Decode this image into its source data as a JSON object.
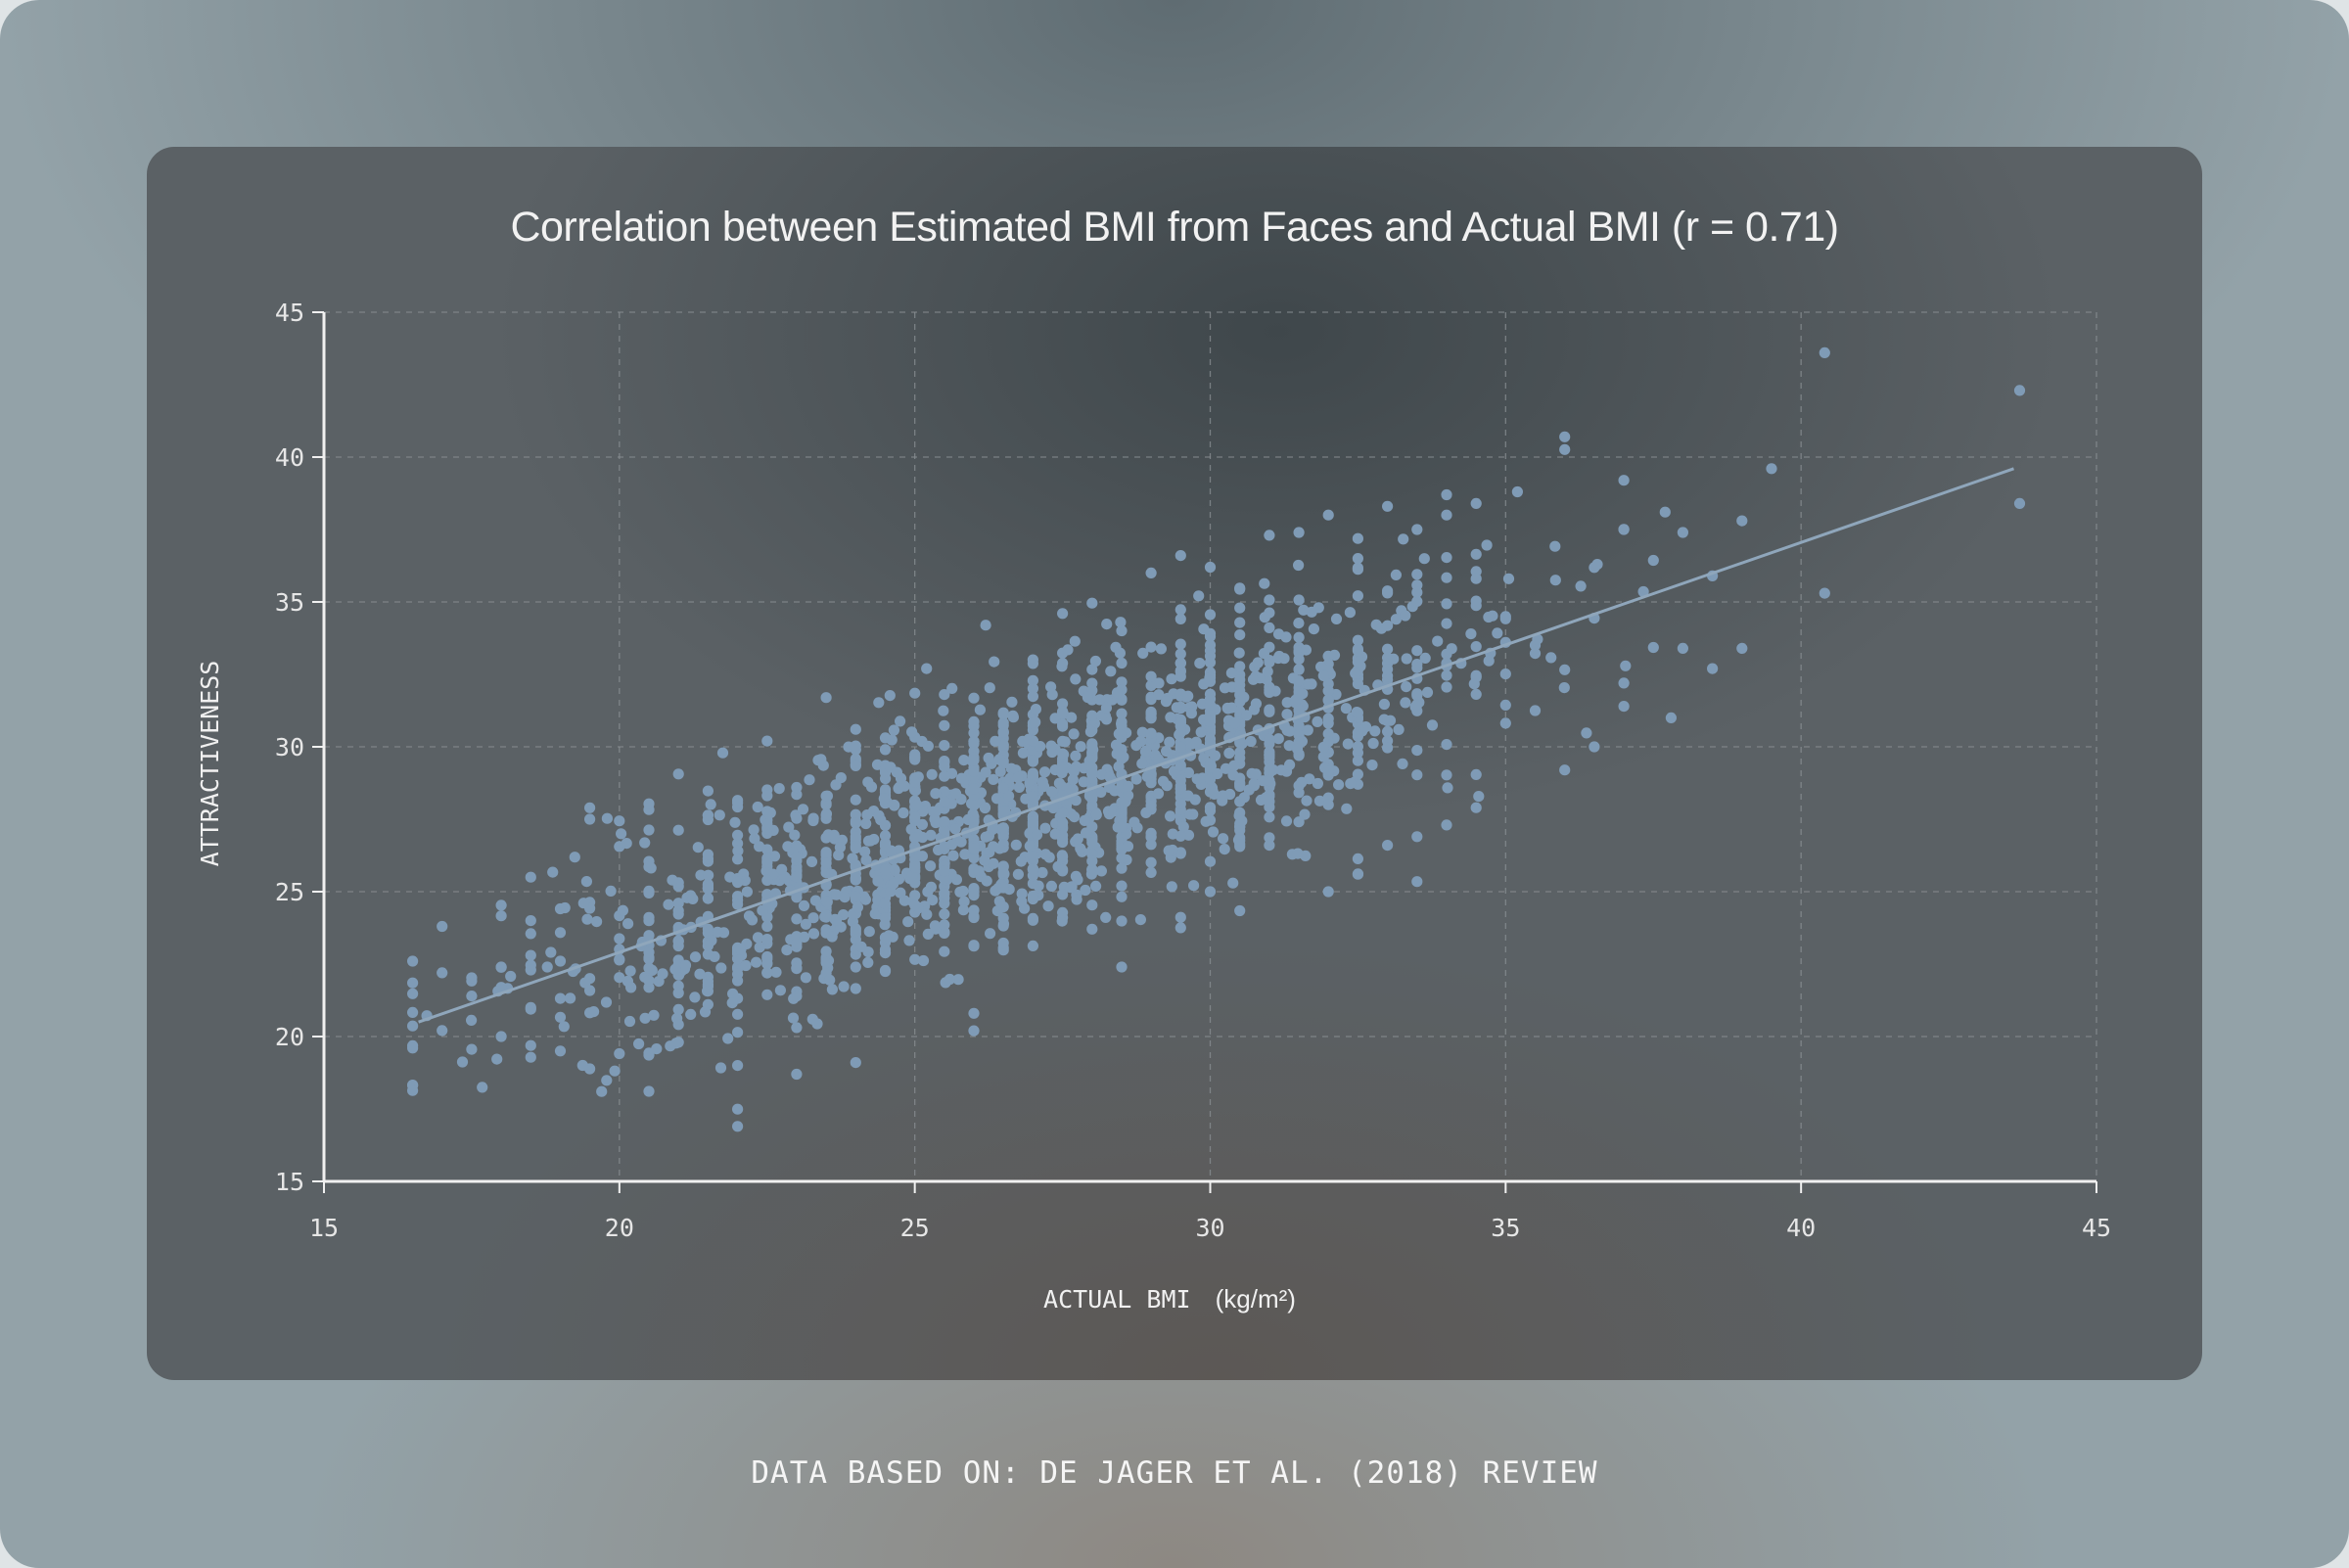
{
  "footer": "DATA BASED ON: DE JAGER ET AL. (2018) REVIEW",
  "colors": {
    "points": "#7f9bb6",
    "trend_line": "#8fa6bb",
    "axis": "#f0f0f0",
    "grid": "#8a9094"
  },
  "chart_data": {
    "type": "scatter",
    "title": "Correlation between Estimated BMI from Faces and Actual BMI (r = 0.71)",
    "xlabel": "ACTUAL BMI",
    "xlabel_unit": "(kg/m²)",
    "ylabel": "ATTRACTIVENESS",
    "xlim": [
      15,
      45
    ],
    "ylim": [
      15,
      45
    ],
    "xticks": [
      "15",
      "20",
      "25",
      "30",
      "35",
      "40",
      "45"
    ],
    "yticks": [
      "15",
      "20",
      "25",
      "30",
      "35",
      "40",
      "45"
    ],
    "grid": true,
    "correlation_r": 0.71,
    "trend_line": {
      "x": [
        16.6,
        43.6
      ],
      "y": [
        20.5,
        39.6
      ]
    },
    "generated_points": {
      "count": 1900,
      "x_mean": 27.0,
      "x_sd": 3.9,
      "x_min": 16.5,
      "x_max": 37.5,
      "slope": 0.707,
      "intercept": 8.8,
      "residual_sd": 2.15
    },
    "points": [
      [
        16.5,
        22.6
      ],
      [
        16.5,
        19.6
      ],
      [
        17.0,
        23.8
      ],
      [
        17.0,
        22.2
      ],
      [
        18.0,
        22.4
      ],
      [
        18.0,
        21.7
      ],
      [
        18.0,
        20.0
      ],
      [
        18.5,
        25.5
      ],
      [
        18.5,
        24.0
      ],
      [
        18.5,
        22.8
      ],
      [
        19.0,
        22.6
      ],
      [
        19.0,
        19.5
      ],
      [
        19.5,
        27.5
      ],
      [
        19.7,
        18.1
      ],
      [
        21.0,
        19.8
      ],
      [
        22.0,
        16.9
      ],
      [
        22.0,
        19.0
      ],
      [
        22.5,
        30.2
      ],
      [
        23.0,
        18.7
      ],
      [
        24.0,
        19.1
      ],
      [
        24.0,
        30.6
      ],
      [
        23.5,
        31.7
      ],
      [
        25.2,
        32.7
      ],
      [
        26.2,
        34.2
      ],
      [
        26.0,
        20.2
      ],
      [
        27.5,
        34.6
      ],
      [
        28.5,
        22.4
      ],
      [
        29.0,
        36.0
      ],
      [
        29.5,
        36.6
      ],
      [
        30.0,
        36.2
      ],
      [
        31.0,
        37.3
      ],
      [
        31.5,
        37.4
      ],
      [
        32.0,
        38.0
      ],
      [
        32.5,
        36.5
      ],
      [
        33.0,
        38.3
      ],
      [
        33.5,
        37.5
      ],
      [
        34.0,
        38.7
      ],
      [
        34.0,
        38.0
      ],
      [
        34.5,
        38.4
      ],
      [
        35.2,
        38.8
      ],
      [
        36.0,
        40.7
      ],
      [
        37.0,
        39.2
      ],
      [
        37.0,
        37.5
      ],
      [
        37.7,
        38.1
      ],
      [
        38.0,
        37.4
      ],
      [
        39.0,
        37.8
      ],
      [
        39.5,
        39.6
      ],
      [
        36.0,
        29.2
      ],
      [
        36.5,
        30.0
      ],
      [
        37.0,
        31.4
      ],
      [
        37.0,
        32.2
      ],
      [
        37.8,
        31.0
      ],
      [
        38.0,
        33.4
      ],
      [
        38.5,
        32.7
      ],
      [
        39.0,
        33.4
      ],
      [
        38.5,
        35.9
      ],
      [
        32.0,
        25.0
      ],
      [
        32.5,
        25.6
      ],
      [
        33.0,
        26.6
      ],
      [
        33.5,
        26.9
      ],
      [
        34.0,
        27.3
      ],
      [
        34.5,
        27.9
      ],
      [
        30.0,
        25.0
      ],
      [
        40.4,
        43.6
      ],
      [
        40.4,
        35.3
      ],
      [
        43.7,
        42.3
      ],
      [
        43.7,
        38.4
      ]
    ]
  }
}
